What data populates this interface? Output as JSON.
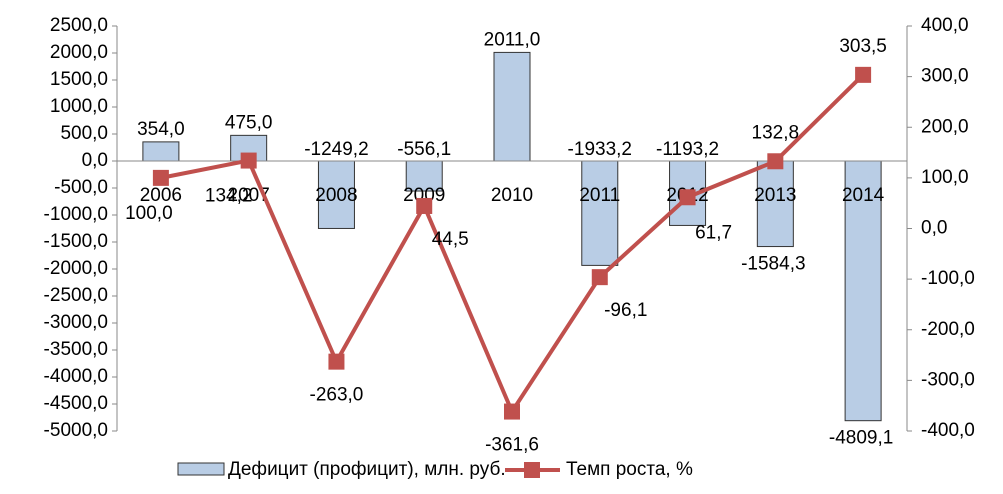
{
  "chart_data": {
    "type": "bar-line",
    "categories": [
      "2006",
      "2007",
      "2008",
      "2009",
      "2010",
      "2011",
      "2012",
      "2013",
      "2014"
    ],
    "series": [
      {
        "name": "Дефицит (профицит), млн. руб.",
        "type": "bar",
        "color": "#b9cde5",
        "values": [
          354.0,
          475.0,
          -1249.2,
          -556.1,
          2011.0,
          -1933.2,
          -1193.2,
          -1584.3,
          -4809.1
        ],
        "value_labels": [
          "354,0",
          "475,0",
          "-1249,2",
          "-556,1",
          "2011,0",
          "-1933,2",
          "-1193,2",
          "-1584,3",
          "-4809,1"
        ]
      },
      {
        "name": "Темп роста, %",
        "type": "line",
        "axis": "y2",
        "color": "#c0504d",
        "values": [
          100.0,
          134.2,
          -263.0,
          44.5,
          -361.6,
          -96.1,
          61.7,
          132.8,
          303.5
        ],
        "value_labels": [
          "100,0",
          "134,2",
          "-263,0",
          "44,5",
          "-361,6",
          "-96,1",
          "61,7",
          "132,8",
          "303,5"
        ]
      }
    ],
    "ylim": [
      -5000,
      2500
    ],
    "yticks": [
      {
        "value": -5000,
        "label": "-5000,0"
      },
      {
        "value": -4500,
        "label": "-4500,0"
      },
      {
        "value": -4000,
        "label": "-4000,0"
      },
      {
        "value": -3500,
        "label": "-3500,0"
      },
      {
        "value": -3000,
        "label": "-3000,0"
      },
      {
        "value": -2500,
        "label": "-2500,0"
      },
      {
        "value": -2000,
        "label": "-2000,0"
      },
      {
        "value": -1500,
        "label": "-1500,0"
      },
      {
        "value": -1000,
        "label": "-1000,0"
      },
      {
        "value": -500,
        "label": "-500,0"
      },
      {
        "value": 0,
        "label": "0,0"
      },
      {
        "value": 500,
        "label": "500,0"
      },
      {
        "value": 1000,
        "label": "1000,0"
      },
      {
        "value": 1500,
        "label": "1500,0"
      },
      {
        "value": 2000,
        "label": "2000,0"
      },
      {
        "value": 2500,
        "label": "2500,0"
      }
    ],
    "y2lim": [
      -400,
      400
    ],
    "y2ticks": [
      {
        "value": -400,
        "label": "-400,0"
      },
      {
        "value": -300,
        "label": "-300,0"
      },
      {
        "value": -200,
        "label": "-200,0"
      },
      {
        "value": -100,
        "label": "-100,0"
      },
      {
        "value": 0,
        "label": "0,0"
      },
      {
        "value": 100,
        "label": "100,0"
      },
      {
        "value": 200,
        "label": "200,0"
      },
      {
        "value": 300,
        "label": "300,0"
      },
      {
        "value": 400,
        "label": "400,0"
      }
    ],
    "legend": "bottom"
  }
}
